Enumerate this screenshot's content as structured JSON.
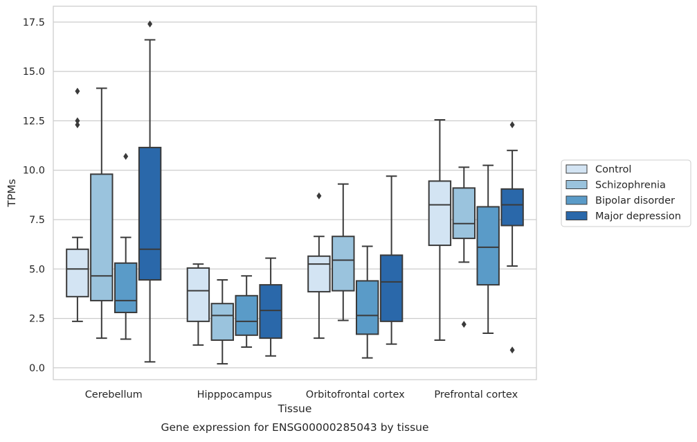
{
  "chart_data": {
    "type": "boxplot",
    "title": "",
    "caption": "Gene expression for ENSG00000285043 by tissue",
    "xlabel": "Tissue",
    "ylabel": "TPMs",
    "ylim": [
      -0.6,
      18.3
    ],
    "yticks": [
      "0.0",
      "2.5",
      "5.0",
      "7.5",
      "10.0",
      "12.5",
      "15.0",
      "17.5"
    ],
    "grid": "horizontal",
    "legend_position": "right",
    "categories": [
      "Cerebellum",
      "Hipppocampus",
      "Orbitofrontal cortex",
      "Prefrontal cortex"
    ],
    "series": [
      {
        "name": "Control",
        "color": "#d3e4f3",
        "boxes": [
          {
            "whislo": 2.35,
            "q1": 3.6,
            "med": 5.0,
            "q3": 6.0,
            "whishi": 6.6,
            "fliers": [
              14.0,
              12.5,
              12.3
            ]
          },
          {
            "whislo": 1.15,
            "q1": 2.35,
            "med": 3.9,
            "q3": 5.05,
            "whishi": 5.25,
            "fliers": []
          },
          {
            "whislo": 1.5,
            "q1": 3.85,
            "med": 5.25,
            "q3": 5.65,
            "whishi": 6.65,
            "fliers": [
              8.7
            ]
          },
          {
            "whislo": 1.4,
            "q1": 6.2,
            "med": 8.25,
            "q3": 9.45,
            "whishi": 12.55,
            "fliers": []
          }
        ]
      },
      {
        "name": "Schizophrenia",
        "color": "#9ac3dd",
        "boxes": [
          {
            "whislo": 1.5,
            "q1": 3.4,
            "med": 4.65,
            "q3": 9.8,
            "whishi": 14.15,
            "fliers": []
          },
          {
            "whislo": 0.2,
            "q1": 1.4,
            "med": 2.65,
            "q3": 3.25,
            "whishi": 4.45,
            "fliers": []
          },
          {
            "whislo": 2.4,
            "q1": 3.9,
            "med": 5.45,
            "q3": 6.65,
            "whishi": 9.3,
            "fliers": []
          },
          {
            "whislo": 5.35,
            "q1": 6.55,
            "med": 7.3,
            "q3": 9.1,
            "whishi": 10.15,
            "fliers": [
              2.2
            ]
          }
        ]
      },
      {
        "name": "Bipolar disorder",
        "color": "#5a9bc8",
        "boxes": [
          {
            "whislo": 1.45,
            "q1": 2.8,
            "med": 3.4,
            "q3": 5.3,
            "whishi": 6.6,
            "fliers": [
              10.7
            ]
          },
          {
            "whislo": 1.05,
            "q1": 1.65,
            "med": 2.35,
            "q3": 3.65,
            "whishi": 4.65,
            "fliers": []
          },
          {
            "whislo": 0.5,
            "q1": 1.7,
            "med": 2.65,
            "q3": 4.4,
            "whishi": 6.15,
            "fliers": []
          },
          {
            "whislo": 1.75,
            "q1": 4.2,
            "med": 6.1,
            "q3": 8.15,
            "whishi": 10.25,
            "fliers": []
          }
        ]
      },
      {
        "name": "Major depression",
        "color": "#2a68aa",
        "boxes": [
          {
            "whislo": 0.3,
            "q1": 4.45,
            "med": 6.0,
            "q3": 11.15,
            "whishi": 16.6,
            "fliers": [
              17.4
            ]
          },
          {
            "whislo": 0.6,
            "q1": 1.5,
            "med": 2.9,
            "q3": 4.2,
            "whishi": 5.55,
            "fliers": []
          },
          {
            "whislo": 1.2,
            "q1": 2.35,
            "med": 4.35,
            "q3": 5.7,
            "whishi": 9.7,
            "fliers": []
          },
          {
            "whislo": 5.15,
            "q1": 7.2,
            "med": 8.25,
            "q3": 9.05,
            "whishi": 11.0,
            "fliers": [
              12.3,
              0.9
            ]
          }
        ]
      }
    ]
  }
}
